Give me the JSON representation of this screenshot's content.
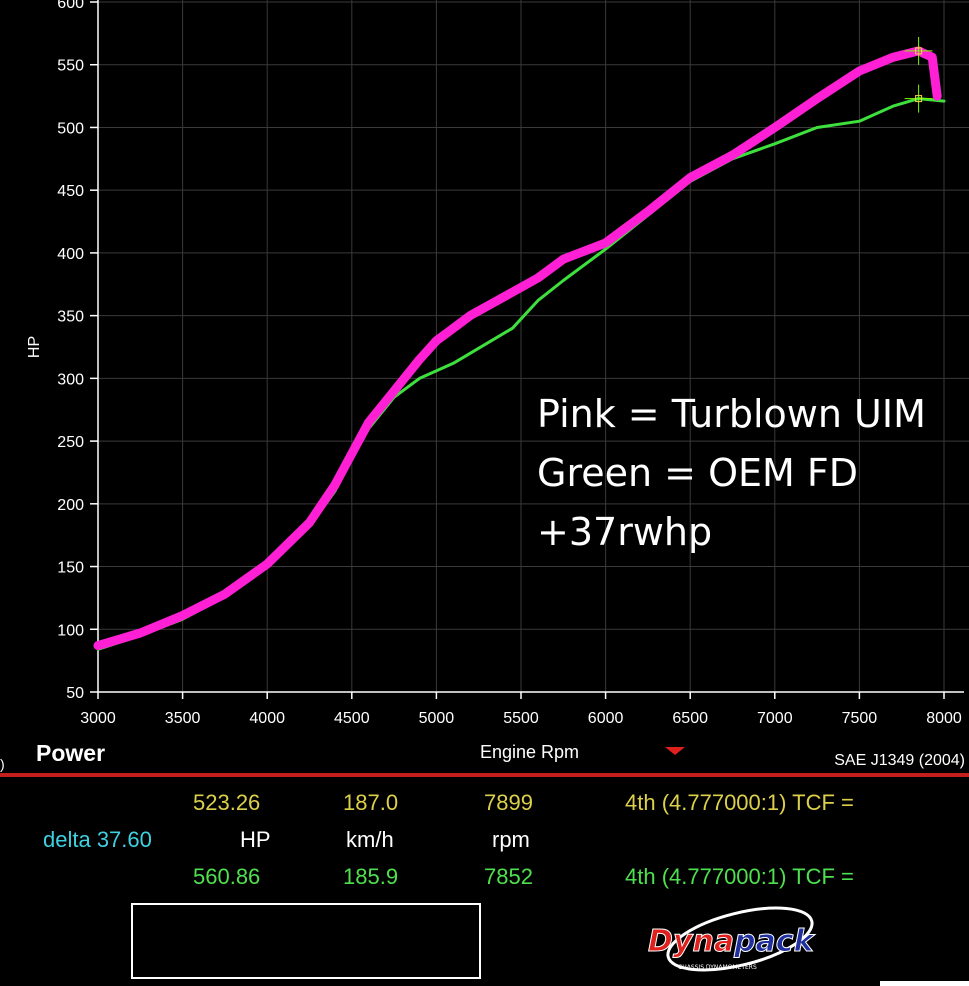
{
  "chart_data": {
    "type": "line",
    "ylabel": "HP",
    "xlabel": "Engine Rpm",
    "xlim": [
      3000,
      8000
    ],
    "ylim": [
      50,
      600
    ],
    "x_ticks": [
      3000,
      3500,
      4000,
      4500,
      5000,
      5500,
      6000,
      6500,
      7000,
      7500,
      8000
    ],
    "y_ticks": [
      50,
      100,
      150,
      200,
      250,
      300,
      350,
      400,
      450,
      500,
      550,
      600
    ],
    "grid": true,
    "series": [
      {
        "color": "#ff1fd4",
        "points": [
          [
            3000,
            87
          ],
          [
            3250,
            97
          ],
          [
            3500,
            111
          ],
          [
            3750,
            128
          ],
          [
            4000,
            152
          ],
          [
            4250,
            185
          ],
          [
            4400,
            215
          ],
          [
            4500,
            240
          ],
          [
            4600,
            265
          ],
          [
            4750,
            290
          ],
          [
            4900,
            315
          ],
          [
            5000,
            330
          ],
          [
            5100,
            340
          ],
          [
            5200,
            350
          ],
          [
            5400,
            365
          ],
          [
            5600,
            380
          ],
          [
            5750,
            395
          ],
          [
            6000,
            408
          ],
          [
            6250,
            433
          ],
          [
            6500,
            460
          ],
          [
            6750,
            478
          ],
          [
            7000,
            500
          ],
          [
            7250,
            523
          ],
          [
            7500,
            545
          ],
          [
            7700,
            556
          ],
          [
            7850,
            561
          ],
          [
            7930,
            556
          ],
          [
            7960,
            525
          ]
        ]
      },
      {
        "color": "#3ee03e",
        "points": [
          [
            3000,
            84
          ],
          [
            3250,
            95
          ],
          [
            3500,
            108
          ],
          [
            3750,
            126
          ],
          [
            4000,
            150
          ],
          [
            4250,
            182
          ],
          [
            4400,
            210
          ],
          [
            4500,
            236
          ],
          [
            4600,
            260
          ],
          [
            4750,
            285
          ],
          [
            4900,
            300
          ],
          [
            5100,
            312
          ],
          [
            5300,
            328
          ],
          [
            5450,
            340
          ],
          [
            5600,
            362
          ],
          [
            5750,
            378
          ],
          [
            6000,
            403
          ],
          [
            6250,
            430
          ],
          [
            6500,
            457
          ],
          [
            6750,
            475
          ],
          [
            7000,
            487
          ],
          [
            7250,
            500
          ],
          [
            7500,
            505
          ],
          [
            7700,
            517
          ],
          [
            7850,
            523
          ],
          [
            8000,
            521
          ]
        ]
      }
    ],
    "annotations": [
      "Pink = Turblown UIM",
      "Green = OEM FD",
      "+37rwhp"
    ]
  },
  "header": {
    "title": "Power",
    "axis_label": "Engine Rpm",
    "standard": "SAE J1349 (2004)",
    "edge_mark": ")"
  },
  "readout": {
    "row1": {
      "hp": "523.26",
      "speed": "187.0",
      "rpm": "7899",
      "gear": "4th (4.777000:1) TCF ="
    },
    "delta": "delta 37.60",
    "units": {
      "hp": "HP",
      "speed": "km/h",
      "rpm": "rpm"
    },
    "row2": {
      "hp": "560.86",
      "speed": "185.9",
      "rpm": "7852",
      "gear": "4th (4.777000:1) TCF ="
    }
  },
  "logo": {
    "name": "Dynapack",
    "tagline": "CHASSIS DYNAMOMETERS"
  },
  "colors": {
    "pink": "#ff1fd4",
    "green": "#3ee03e",
    "accent": "#c41e1e",
    "yellow": "#dcd04a",
    "cyan": "#3fd0e0"
  }
}
